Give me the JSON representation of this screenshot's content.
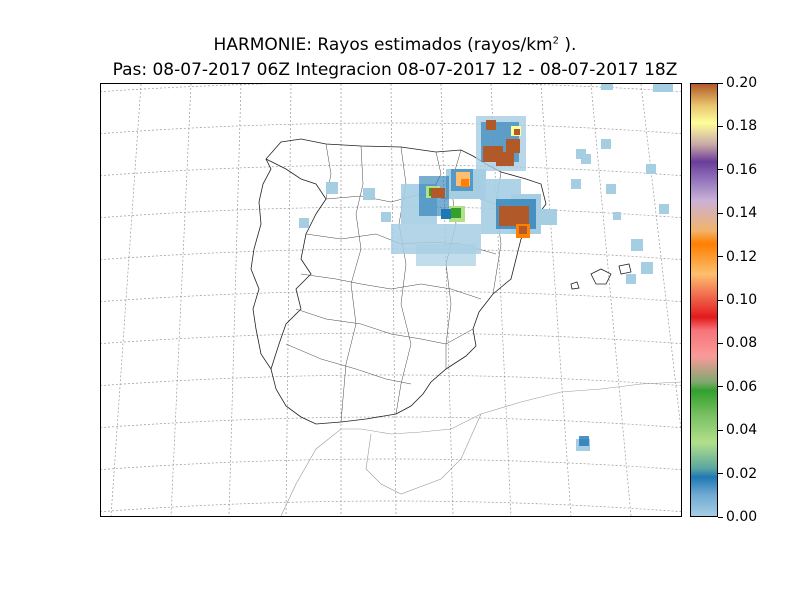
{
  "title_line1": "HARMONIE: Rayos estimados  (rayos/km",
  "title_sup": "2",
  "title_tail": " ).",
  "title_line2": "Pas: 08-07-2017 06Z Integracion 08-07-2017 12 - 08-07-2017 18Z",
  "colorbar": {
    "ticks": [
      "0.00",
      "0.02",
      "0.04",
      "0.06",
      "0.08",
      "0.10",
      "0.12",
      "0.14",
      "0.16",
      "0.18",
      "0.20"
    ],
    "vmin": 0.0,
    "vmax": 0.2,
    "colors": [
      "#a6cee3",
      "#1f78b4",
      "#b2df8a",
      "#33a02c",
      "#fb9a99",
      "#e31a1c",
      "#fdbf6f",
      "#ff7f00",
      "#cab2d6",
      "#6a3d9a",
      "#ffff99",
      "#b15928"
    ]
  }
}
